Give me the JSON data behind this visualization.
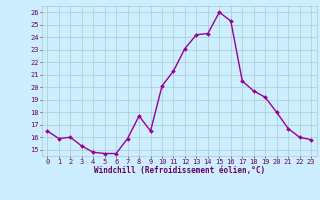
{
  "x": [
    0,
    1,
    2,
    3,
    4,
    5,
    6,
    7,
    8,
    9,
    10,
    11,
    12,
    13,
    14,
    15,
    16,
    17,
    18,
    19,
    20,
    21,
    22,
    23
  ],
  "y": [
    16.5,
    15.9,
    16.0,
    15.3,
    14.8,
    14.7,
    14.7,
    15.9,
    17.7,
    16.5,
    20.1,
    21.3,
    23.1,
    24.2,
    24.3,
    26.0,
    25.3,
    20.5,
    19.7,
    19.2,
    18.0,
    16.7,
    16.0,
    15.8
  ],
  "line_color": "#990099",
  "marker": "D",
  "markersize": 2.0,
  "linewidth": 1.0,
  "bg_color": "#cceeff",
  "grid_color": "#aacccc",
  "xlabel": "Windchill (Refroidissement éolien,°C)",
  "xlabel_color": "#660066",
  "tick_color": "#660066",
  "ylim": [
    14.5,
    26.5
  ],
  "xlim": [
    -0.5,
    23.5
  ],
  "yticks": [
    15,
    16,
    17,
    18,
    19,
    20,
    21,
    22,
    23,
    24,
    25,
    26
  ],
  "xticks": [
    0,
    1,
    2,
    3,
    4,
    5,
    6,
    7,
    8,
    9,
    10,
    11,
    12,
    13,
    14,
    15,
    16,
    17,
    18,
    19,
    20,
    21,
    22,
    23
  ],
  "tick_fontsize": 5.0,
  "xlabel_fontsize": 5.5
}
